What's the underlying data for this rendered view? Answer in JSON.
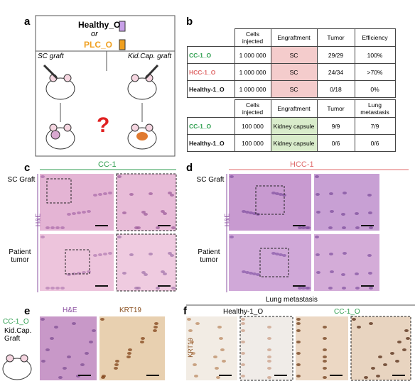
{
  "panels": {
    "a": {
      "label": "a",
      "healthy": "Healthy_O",
      "or": "or",
      "plc": "PLC_O",
      "sc_graft": "SC graft",
      "kid_graft": "Kid.Cap. graft",
      "question": "?"
    },
    "b": {
      "label": "b",
      "table1": {
        "header": [
          "Cells injected",
          "Engraftment",
          "Tumor",
          "Efficiency"
        ],
        "rows": [
          [
            "CC-1_O",
            "1 000 000",
            "SC",
            "29/29",
            "100%"
          ],
          [
            "HCC-1_O",
            "1 000 000",
            "SC",
            "24/34",
            ">70%"
          ],
          [
            "Healthy-1_O",
            "1 000 000",
            "SC",
            "0/18",
            "0%"
          ]
        ]
      },
      "table2": {
        "header": [
          "Cells injected",
          "Engraftment",
          "Tumor",
          "Lung metastasis"
        ],
        "rows": [
          [
            "CC-1_O",
            "100 000",
            "Kidney capsule",
            "9/9",
            "7/9"
          ],
          [
            "Healthy-1_O",
            "100 000",
            "Kidney capsule",
            "0/6",
            "0/6"
          ]
        ]
      }
    },
    "c": {
      "label": "c",
      "title": "CC-1",
      "row_labels": [
        "SC Graft",
        "Patient tumor"
      ],
      "stain": "H&E"
    },
    "d": {
      "label": "d",
      "title": "HCC-1",
      "row_labels": [
        "SC Graft",
        "Patient tumor"
      ],
      "stain": "H&E"
    },
    "e": {
      "label": "e",
      "sample": "CC-1_O",
      "graft": "Kid.Cap. Graft",
      "columns": [
        "H&E",
        "KRT19"
      ]
    },
    "f": {
      "label": "f",
      "title": "Lung metastasis",
      "columns": [
        "Healthy-1_O",
        "CC-1_O"
      ],
      "stain": "KRT19"
    }
  }
}
